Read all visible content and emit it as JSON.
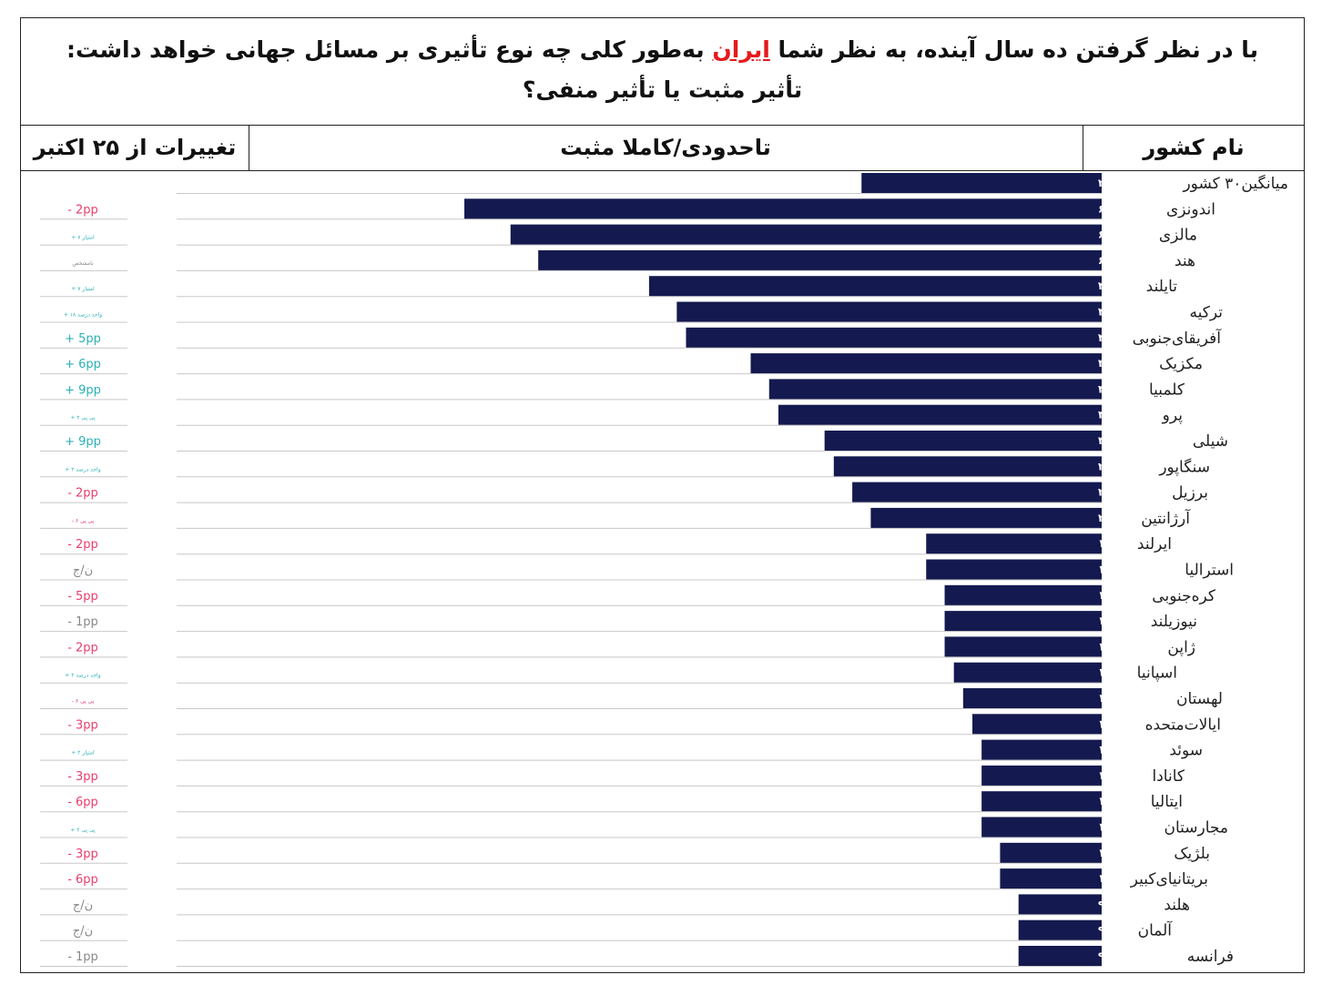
{
  "title": {
    "line1_before": "با در نظر گرفتن ده سال آینده، به نظر شما",
    "line1_highlight": "ایران",
    "line1_after": "به‌طور کلی چه نوع تأثیری بر مسائل جهانی خواهد داشت:",
    "line2": "تأثیر مثبت یا تأثیر منفی؟"
  },
  "headers": {
    "country": "نام کشور",
    "metric": "تاحدودی/کاملا مثبت",
    "change": "تغییرات از ۲۵ اکتبر"
  },
  "colors": {
    "bar": "#141a4f",
    "negative": "#e83e6c",
    "positive": "#2ab0b6",
    "neutral": "#888888",
    "highlight": "#e5191c"
  },
  "chart_data": {
    "type": "bar",
    "orientation": "horizontal",
    "xlim": [
      0,
      100
    ],
    "categories": [
      "میانگین۳۰ کشور",
      "اندونزی",
      "مالزی",
      "هند",
      "تایلند",
      "ترکیه",
      "آفریقای‌جنوبی",
      "مکزیک",
      "کلمبیا",
      "پرو",
      "شیلی",
      "سنگاپور",
      "برزیل",
      "آرژانتین",
      "ایرلند",
      "استرالیا",
      "کره‌جنوبی",
      "نیوزیلند",
      "ژاپن",
      "اسپانیا",
      "لهستان",
      "ایالات‌متحده",
      "سوئد",
      "کانادا",
      "ایتالیا",
      "مجارستان",
      "بلژیک",
      "بریتانیای‌کبیر",
      "هلند",
      "آلمان",
      "فرانسه"
    ],
    "values": [
      26,
      69,
      64,
      61,
      49,
      46,
      45,
      38,
      36,
      35,
      30,
      29,
      27,
      25,
      19,
      19,
      17,
      17,
      17,
      16,
      15,
      14,
      13,
      13,
      13,
      13,
      11,
      11,
      9,
      9,
      9
    ],
    "labels": [
      "۲۶٪",
      "۶۹٪",
      "۶۴٪",
      "۶۱٪",
      "۴۹٪",
      "۴۶٪",
      "۴۵٪",
      "۳۸٪",
      "۳۶٪",
      "۳۵٪",
      "۳۰٪",
      "۲۹٪",
      "۲۷٪",
      "۲۵٪",
      "۱۹٪",
      "۱۹٪",
      "۱۷٪",
      "۱۷٪",
      "۱۷٪",
      "۱۶٪",
      "۱۵٪",
      "۱۴٪",
      "۱۳٪",
      "۱۳٪",
      "۱۳٪",
      "۱۳٪",
      "۱۱٪",
      "۱۱٪",
      "۹٪",
      "۹٪",
      "۹٪"
    ],
    "changes": [
      {
        "text": "",
        "kind": "none"
      },
      {
        "text": "- 2pp",
        "kind": "negative"
      },
      {
        "text": "+ ۷ امتیاز",
        "kind": "positive-small"
      },
      {
        "text": "نامشخص",
        "kind": "neutral-small"
      },
      {
        "text": "+ ۷ امتیاز",
        "kind": "positive-small"
      },
      {
        "text": "+ ۱۸ واحد درصد",
        "kind": "positive-small"
      },
      {
        "text": "+ 5pp",
        "kind": "positive"
      },
      {
        "text": "+ 6pp",
        "kind": "positive"
      },
      {
        "text": "+ 9pp",
        "kind": "positive"
      },
      {
        "text": "+ ۲ پی پی",
        "kind": "positive-small"
      },
      {
        "text": "+ 9pp",
        "kind": "positive"
      },
      {
        "text": "+ ۲ واحد درصد",
        "kind": "positive-small"
      },
      {
        "text": "- 2pp",
        "kind": "negative"
      },
      {
        "text": "- ۶ پی پی",
        "kind": "negative-small"
      },
      {
        "text": "- 2pp",
        "kind": "negative"
      },
      {
        "text": "ن/ج",
        "kind": "neutral"
      },
      {
        "text": "- 5pp",
        "kind": "negative"
      },
      {
        "text": "- 1pp",
        "kind": "neutral"
      },
      {
        "text": "- 2pp",
        "kind": "negative"
      },
      {
        "text": "+ ۲ واحد درصد",
        "kind": "positive-small"
      },
      {
        "text": "- ۶ پی پی",
        "kind": "negative-small"
      },
      {
        "text": "- 3pp",
        "kind": "negative"
      },
      {
        "text": "+ ۲ امتیاز",
        "kind": "positive-small"
      },
      {
        "text": "- 3pp",
        "kind": "negative"
      },
      {
        "text": "- 6pp",
        "kind": "negative"
      },
      {
        "text": "+ ۲ پی پی",
        "kind": "positive-small"
      },
      {
        "text": "- 3pp",
        "kind": "negative"
      },
      {
        "text": "- 6pp",
        "kind": "negative"
      },
      {
        "text": "ن/ج",
        "kind": "neutral"
      },
      {
        "text": "ن/ج",
        "kind": "neutral"
      },
      {
        "text": "- 1pp",
        "kind": "neutral"
      }
    ]
  }
}
